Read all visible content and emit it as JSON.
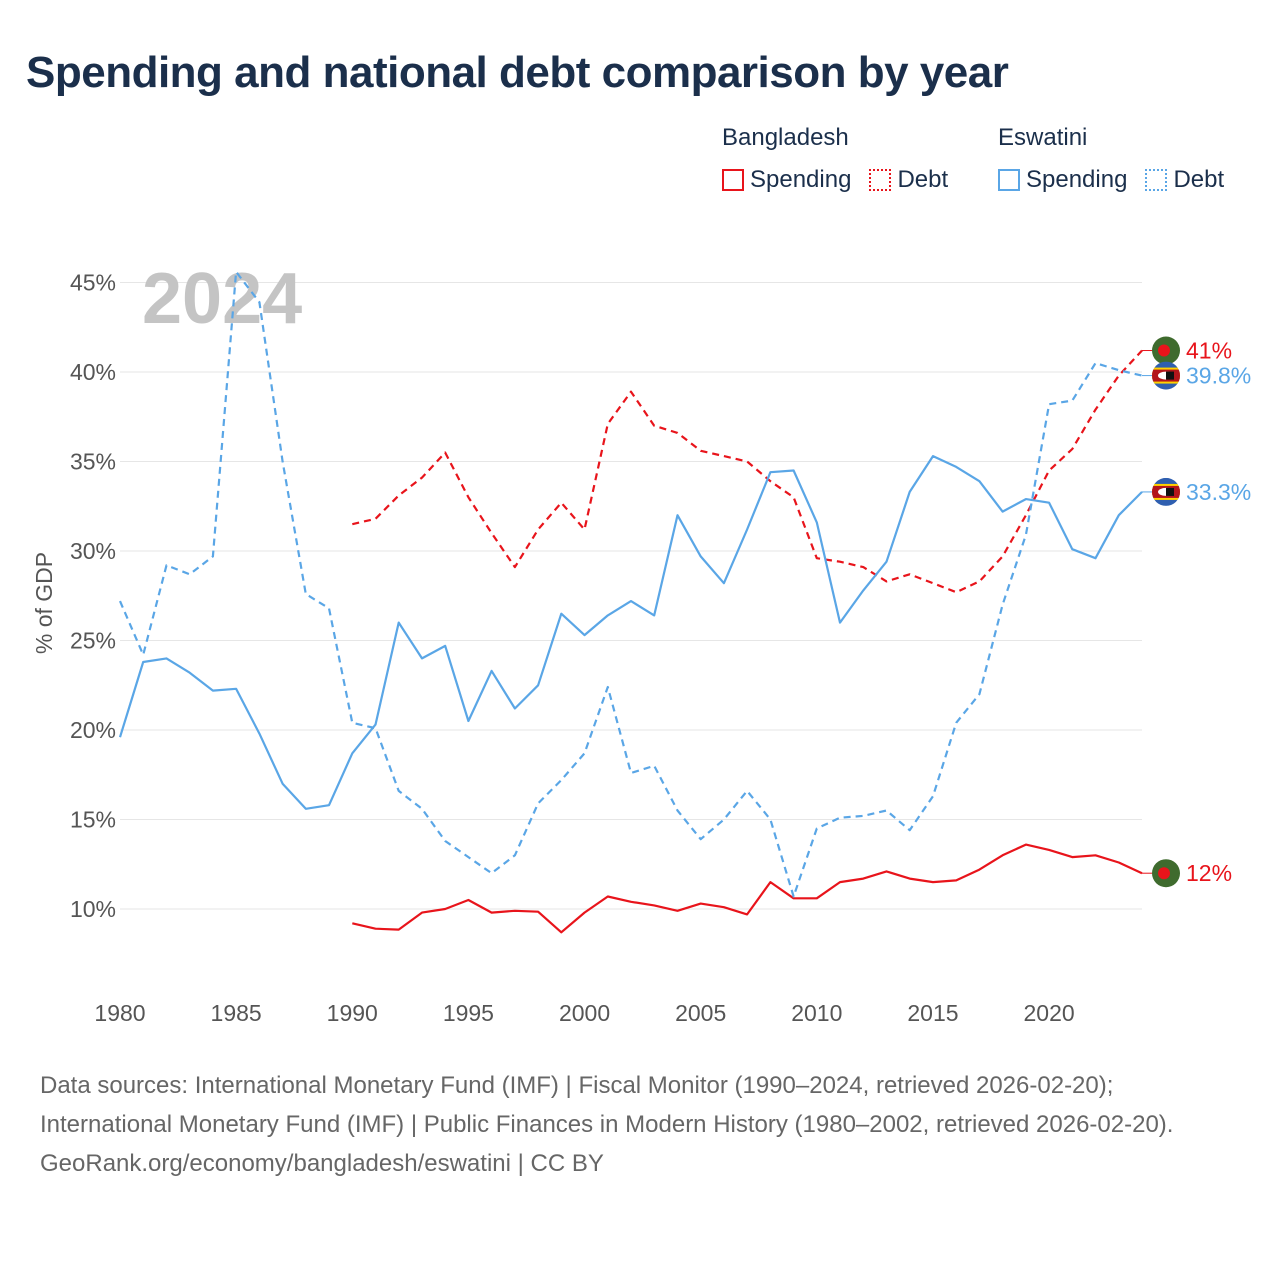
{
  "title": "Spending and national debt comparison by year",
  "legend": {
    "groups": [
      {
        "name": "Bangladesh",
        "items": [
          {
            "label": "Spending",
            "style": "solid",
            "color": "#e8141b"
          },
          {
            "label": "Debt",
            "style": "dotted",
            "color": "#e8141b"
          }
        ]
      },
      {
        "name": "Eswatini",
        "items": [
          {
            "label": "Spending",
            "style": "solid",
            "color": "#5aa6e6"
          },
          {
            "label": "Debt",
            "style": "dotted",
            "color": "#5aa6e6"
          }
        ]
      }
    ]
  },
  "chart_data": {
    "type": "line",
    "year_label": "2024",
    "ylabel": "% of GDP",
    "ylim": [
      7,
      48
    ],
    "xlim": [
      1980,
      2024
    ],
    "x_ticks": [
      1980,
      1985,
      1990,
      1995,
      2000,
      2005,
      2010,
      2015,
      2020
    ],
    "y_ticks": [
      10,
      15,
      20,
      25,
      30,
      35,
      40,
      45
    ],
    "y_tick_labels": [
      "10%",
      "15%",
      "20%",
      "25%",
      "30%",
      "35%",
      "40%",
      "45%"
    ],
    "series": [
      {
        "name": "Bangladesh Spending",
        "color": "#e8141b",
        "dash": false,
        "end_label": "12%",
        "flag": "bangladesh-flag",
        "x": [
          1990,
          1991,
          1992,
          1993,
          1994,
          1995,
          1996,
          1997,
          1998,
          1999,
          2000,
          2001,
          2002,
          2003,
          2004,
          2005,
          2006,
          2007,
          2008,
          2009,
          2010,
          2011,
          2012,
          2013,
          2014,
          2015,
          2016,
          2017,
          2018,
          2019,
          2020,
          2021,
          2022,
          2023,
          2024
        ],
        "y": [
          9.2,
          8.9,
          8.85,
          9.8,
          10.0,
          10.5,
          9.8,
          9.9,
          9.85,
          8.7,
          9.8,
          10.7,
          10.4,
          10.2,
          9.9,
          10.3,
          10.1,
          9.7,
          11.5,
          10.6,
          10.6,
          11.5,
          11.7,
          12.1,
          11.7,
          11.5,
          11.6,
          12.2,
          13.0,
          13.6,
          13.3,
          12.9,
          13.0,
          12.6,
          12.0
        ]
      },
      {
        "name": "Bangladesh Debt",
        "color": "#e8141b",
        "dash": true,
        "end_label": "41%",
        "flag": "bangladesh-flag",
        "x": [
          1990,
          1991,
          1992,
          1993,
          1994,
          1995,
          1996,
          1997,
          1998,
          1999,
          2000,
          2001,
          2002,
          2003,
          2004,
          2005,
          2006,
          2007,
          2008,
          2009,
          2010,
          2011,
          2012,
          2013,
          2014,
          2015,
          2016,
          2017,
          2018,
          2019,
          2020,
          2021,
          2022,
          2023,
          2024
        ],
        "y": [
          31.5,
          31.8,
          33.1,
          34.1,
          35.5,
          33.0,
          31.0,
          29.1,
          31.2,
          32.7,
          31.2,
          37.1,
          38.9,
          37.0,
          36.6,
          35.6,
          35.3,
          35.0,
          33.9,
          33.0,
          29.6,
          29.4,
          29.1,
          28.3,
          28.7,
          28.2,
          27.7,
          28.3,
          29.7,
          32.0,
          34.5,
          35.7,
          37.9,
          39.8,
          41.2
        ]
      },
      {
        "name": "Eswatini Spending",
        "color": "#5aa6e6",
        "dash": false,
        "end_label": "33.3%",
        "flag": "eswatini-flag",
        "x": [
          1980,
          1981,
          1982,
          1983,
          1984,
          1985,
          1986,
          1987,
          1988,
          1989,
          1990,
          1991,
          1992,
          1993,
          1994,
          1995,
          1996,
          1997,
          1998,
          1999,
          2000,
          2001,
          2002,
          2003,
          2004,
          2005,
          2006,
          2007,
          2008,
          2009,
          2010,
          2011,
          2012,
          2013,
          2014,
          2015,
          2016,
          2017,
          2018,
          2019,
          2020,
          2021,
          2022,
          2023,
          2024
        ],
        "y": [
          19.6,
          23.8,
          24.0,
          23.2,
          22.2,
          22.3,
          19.8,
          17.0,
          15.6,
          15.8,
          18.7,
          20.3,
          26.0,
          24.0,
          24.7,
          20.5,
          23.3,
          21.2,
          22.5,
          26.5,
          25.3,
          26.4,
          27.2,
          26.4,
          32.0,
          29.7,
          28.2,
          31.2,
          34.4,
          34.5,
          31.6,
          26.0,
          27.8,
          29.4,
          33.3,
          35.3,
          34.7,
          33.9,
          32.2,
          32.9,
          32.7,
          30.1,
          29.6,
          32.0,
          33.3
        ]
      },
      {
        "name": "Eswatini Debt",
        "color": "#5aa6e6",
        "dash": true,
        "end_label": "39.8%",
        "flag": "eswatini-flag",
        "x": [
          1980,
          1981,
          1982,
          1983,
          1984,
          1985,
          1986,
          1987,
          1988,
          1989,
          1990,
          1991,
          1992,
          1993,
          1994,
          1995,
          1996,
          1997,
          1998,
          1999,
          2000,
          2001,
          2002,
          2003,
          2004,
          2005,
          2006,
          2007,
          2008,
          2009,
          2010,
          2011,
          2012,
          2013,
          2014,
          2015,
          2016,
          2017,
          2018,
          2019,
          2020,
          2021,
          2022,
          2023,
          2024
        ],
        "y": [
          27.2,
          24.2,
          29.2,
          28.7,
          29.7,
          45.6,
          43.9,
          35.0,
          27.6,
          26.8,
          20.4,
          20.1,
          16.6,
          15.6,
          13.8,
          12.9,
          12.0,
          13.0,
          15.9,
          17.2,
          18.7,
          22.4,
          17.6,
          18.0,
          15.5,
          13.9,
          15.0,
          16.6,
          15.0,
          10.7,
          14.5,
          15.1,
          15.2,
          15.5,
          14.4,
          16.3,
          20.4,
          22.0,
          27.0,
          30.9,
          38.2,
          38.4,
          40.5,
          40.1,
          39.8
        ]
      }
    ]
  },
  "footer": {
    "sources": "Data sources: International Monetary Fund (IMF) | Fiscal Monitor (1990–2024, retrieved 2026-02-20); International Monetary Fund (IMF) | Public Finances in Modern History (1980–2002, retrieved 2026-02-20).",
    "credit": "GeoRank.org/economy/bangladesh/eswatini | CC BY"
  }
}
